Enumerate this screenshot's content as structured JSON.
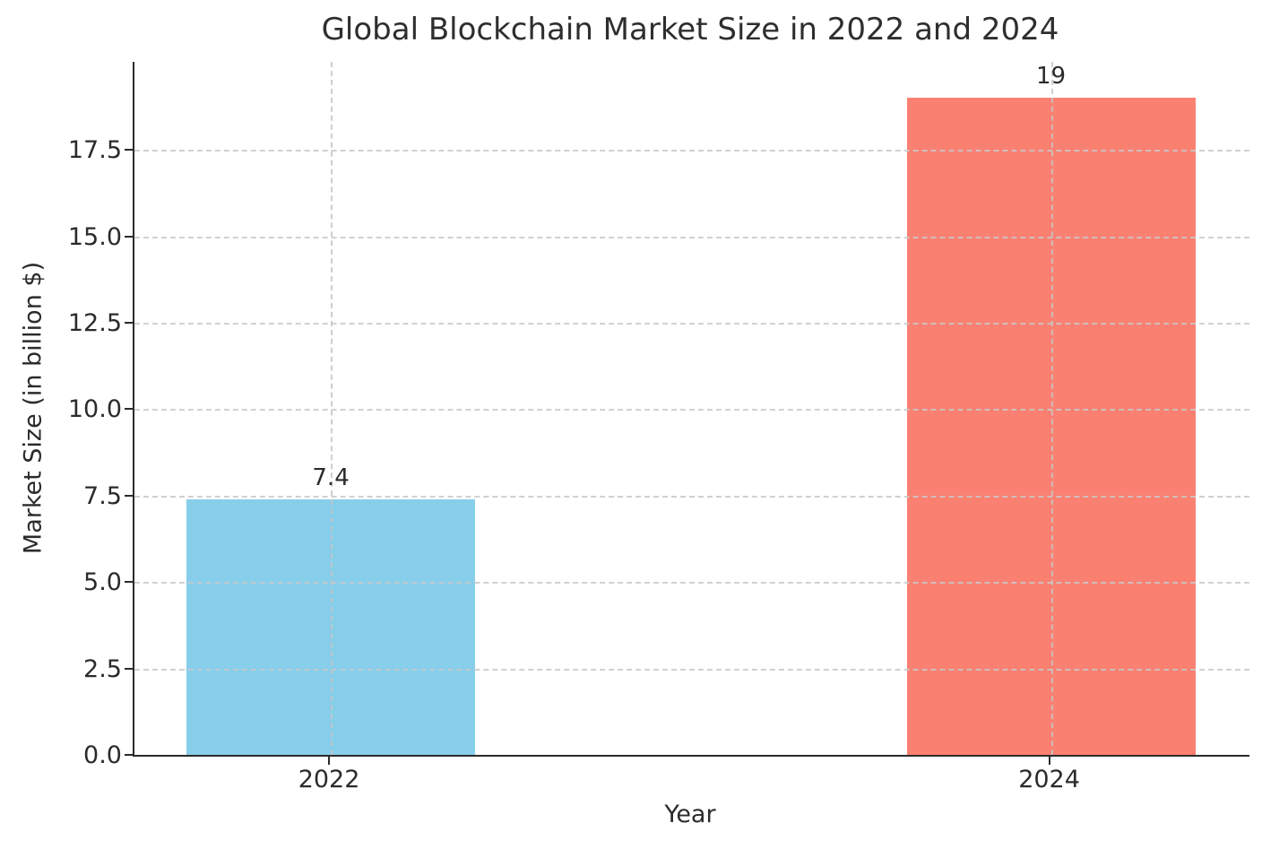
{
  "chart_data": {
    "type": "bar",
    "title": "Global Blockchain Market Size in 2022 and 2024",
    "xlabel": "Year",
    "ylabel": "Market Size (in billion $)",
    "categories": [
      "2022",
      "2024"
    ],
    "values": [
      7.4,
      19
    ],
    "value_labels": [
      "7.4",
      "19"
    ],
    "bar_colors": [
      "#87CEEB",
      "#FA8072"
    ],
    "ylim": [
      0,
      20.05
    ],
    "yticks": [
      0.0,
      2.5,
      5.0,
      7.5,
      10.0,
      12.5,
      15.0,
      17.5
    ],
    "ytick_labels": [
      "0.0",
      "2.5",
      "5.0",
      "7.5",
      "10.0",
      "12.5",
      "15.0",
      "17.5"
    ],
    "grid": "dashed",
    "grid_color": "#c9c9c9",
    "axis_color": "#2b2b2b",
    "text_color": "#2b2b2b",
    "background_color": "#ffffff",
    "legend": "none"
  }
}
